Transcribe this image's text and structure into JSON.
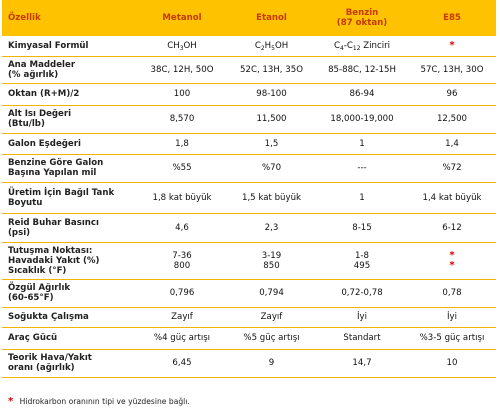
{
  "headers": {
    "property": "Özellik",
    "methanol": "Metanol",
    "ethanol": "Etanol",
    "gasoline_line1": "Benzin",
    "gasoline_line2": "(87 oktan)",
    "e85": "E85"
  },
  "rows": [
    {
      "label": [
        "Kimyasal Formül"
      ],
      "values": [
        {
          "text": "CH3OH",
          "sub": "3",
          "pre": "CH",
          "post": "OH"
        },
        {
          "pre": "C",
          "sub": "2",
          "post": "H5OH",
          "post_sub": "5",
          "post2": "OH"
        },
        {
          "pre": "C",
          "sub": "4",
          "post": "-C",
          "sub2": "12",
          "post2": " Zinciri"
        },
        {
          "star": "*"
        }
      ],
      "height": 20
    },
    {
      "label": [
        "Ana Maddeler",
        "(% ağırlık)"
      ],
      "values": [
        "38C, 12H, 50O",
        "52C, 13H, 35O",
        "85-88C, 12-15H",
        "57C, 13H, 30O"
      ],
      "height": 27
    },
    {
      "label": [
        "Oktan (R+M)/2"
      ],
      "values": [
        "100",
        "98-100",
        "86-94",
        "96"
      ],
      "height": 22
    },
    {
      "label": [
        "Alt Isı Değeri",
        "(Btu/lb)"
      ],
      "values": [
        "8,570",
        "11,500",
        "18,000-19,000",
        "12,500"
      ],
      "height": 28
    },
    {
      "label": [
        "Galon Eşdeğeri"
      ],
      "values": [
        "1,8",
        "1,5",
        "1",
        "1,4"
      ],
      "height": 21
    },
    {
      "label": [
        "Benzine Göre Galon",
        "Başına Yapılan mil"
      ],
      "values": [
        "%55",
        "%70",
        "---",
        "%72"
      ],
      "height": 28
    },
    {
      "label": [
        "Üretim İçin Bağıl Tank",
        "Boyutu"
      ],
      "values": [
        "1,8 kat büyük",
        "1,5 kat büyük",
        "1",
        "1,4 kat büyük"
      ],
      "height": 31
    },
    {
      "label": [
        "Reid Buhar Basıncı",
        "(psi)"
      ],
      "values": [
        "4,6",
        "2,3",
        "8-15",
        "6-12"
      ],
      "height": 29
    },
    {
      "label": [
        "Tutuşma Noktası:",
        "Havadaki Yakıt (%)",
        "Sıcaklık (°F)"
      ],
      "values": [
        [
          "7-36",
          "800"
        ],
        [
          "3-19",
          "850"
        ],
        [
          "1-8",
          "495"
        ],
        [
          {
            "star": "*"
          },
          {
            "star": "*"
          }
        ]
      ],
      "height": 37
    },
    {
      "label": [
        "Özgül Ağırlık",
        "(60-65°F)"
      ],
      "values": [
        "0,796",
        "0,794",
        "0,72-0,78",
        "0,78"
      ],
      "height": 28
    },
    {
      "label": [
        "Soğukta Çalışma"
      ],
      "values": [
        "Zayıf",
        "Zayıf",
        "İyi",
        "İyi"
      ],
      "height": 20
    },
    {
      "label": [
        "Araç Gücü"
      ],
      "values": [
        "%4 güç artışı",
        "%5 güç artışı",
        "Standart",
        "%3-5 güç artışı"
      ],
      "height": 22
    },
    {
      "label": [
        "Teorik Hava/Yakıt",
        "oranı (ağırlık)"
      ],
      "values": [
        "6,45",
        "9",
        "14,7",
        "10"
      ],
      "height": 28
    }
  ],
  "footnote": {
    "marker": "*",
    "text": "Hidrokarbon oranının tipi ve yüzdesine bağlı."
  }
}
